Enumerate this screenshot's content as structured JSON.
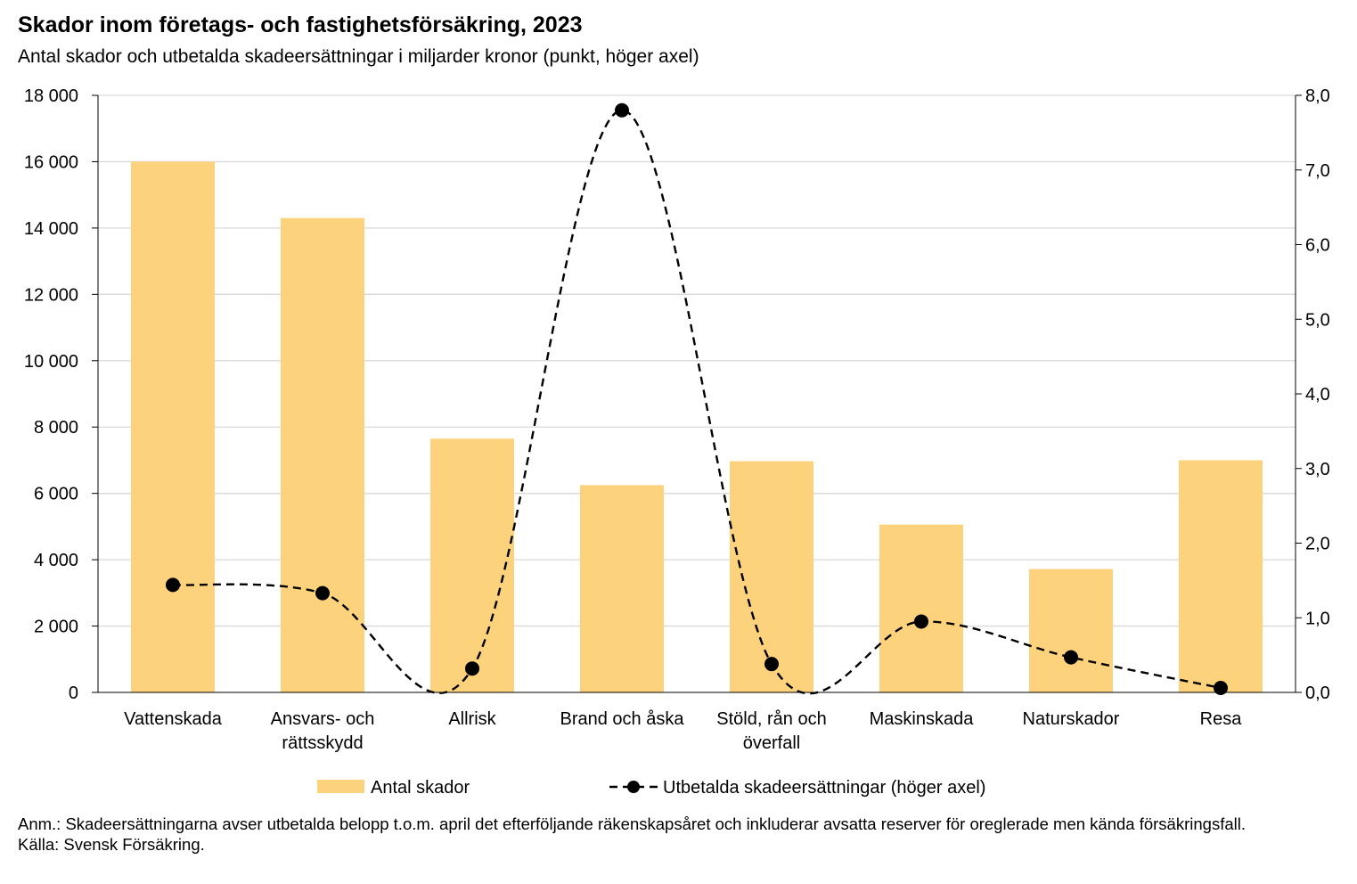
{
  "title": "Skador inom företags- och fastighetsförsäkring, 2023",
  "subtitle": "Antal skador och utbetalda skadeersättningar i miljarder kronor (punkt, höger axel)",
  "notes": {
    "anm": "Anm.: Skadeersättningarna avser utbetalda belopp t.o.m. april det efterföljande räkenskapsåret och inkluderar avsatta reserver för oreglerade men kända försäkringsfall.",
    "source": "Källa: Svensk Försäkring."
  },
  "chart_data": {
    "type": "bar",
    "title": "Skador inom företags- och fastighetsförsäkring, 2023",
    "categories": [
      [
        "Vattenskada"
      ],
      [
        "Ansvars- och",
        "rättsskydd"
      ],
      [
        "Allrisk"
      ],
      [
        "Brand och åska"
      ],
      [
        "Stöld, rån och",
        "överfall"
      ],
      [
        "Maskinskada"
      ],
      [
        "Naturskador"
      ],
      [
        "Resa"
      ]
    ],
    "series": [
      {
        "name": "Antal skador",
        "type": "bar",
        "axis": "left",
        "color": "#FDD27D",
        "values": [
          16000,
          14300,
          7650,
          6250,
          6970,
          5060,
          3720,
          7000
        ]
      },
      {
        "name": "Utbetalda skadeersättningar (höger axel)",
        "type": "line",
        "axis": "right",
        "color": "#000000",
        "line_style": "dashed-smooth",
        "values": [
          1.44,
          1.33,
          0.32,
          7.8,
          0.38,
          0.95,
          0.47,
          0.06
        ]
      }
    ],
    "left_axis": {
      "ylim": [
        0,
        18000
      ],
      "ticks": [
        0,
        2000,
        4000,
        6000,
        8000,
        10000,
        12000,
        14000,
        16000,
        18000
      ],
      "tick_labels": [
        "0",
        "2 000",
        "4 000",
        "6 000",
        "8 000",
        "10 000",
        "12 000",
        "14 000",
        "16 000",
        "18 000"
      ]
    },
    "right_axis": {
      "ylim": [
        0,
        8
      ],
      "ticks": [
        0,
        1,
        2,
        3,
        4,
        5,
        6,
        7,
        8
      ],
      "tick_labels": [
        "0,0",
        "1,0",
        "2,0",
        "3,0",
        "4,0",
        "5,0",
        "6,0",
        "7,0",
        "8,0"
      ]
    },
    "grid": true,
    "legend_position": "bottom-center"
  }
}
